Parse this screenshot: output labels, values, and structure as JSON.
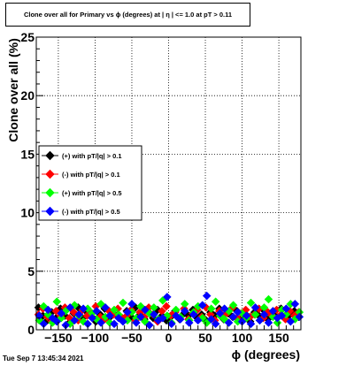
{
  "header": {
    "title": "Clone  over all for Primary vs ϕ (degrees) at |  η | <= 1.0 at pT > 0.11"
  },
  "footer": {
    "timestamp": "Tue Sep  7 13:45:34 2021"
  },
  "chart_data": {
    "type": "scatter",
    "title": "Clone  over all for Primary vs ϕ (degrees) at |  η | <= 1.0 at pT > 0.11",
    "xlabel": "ϕ (degrees)",
    "ylabel": "Clone  over all (%)",
    "xlim": [
      -180,
      180
    ],
    "ylim": [
      0,
      25
    ],
    "x_ticks": [
      -150,
      -100,
      -50,
      0,
      50,
      100,
      150
    ],
    "x_tick_labels": [
      "−150",
      "−100",
      "−50",
      "0",
      "50",
      "100",
      "150"
    ],
    "y_ticks": [
      0,
      5,
      10,
      15,
      20,
      25
    ],
    "y_tick_labels": [
      "0",
      "5",
      "10",
      "15",
      "20",
      "25"
    ],
    "grid": true,
    "marker": "diamond",
    "legend_position": "left-middle",
    "series": [
      {
        "name": "(+) with pT/|q| > 0.1",
        "color": "#000000",
        "x": [
          -177,
          -171,
          -165,
          -159,
          -153,
          -147,
          -141,
          -135,
          -129,
          -123,
          -117,
          -111,
          -105,
          -99,
          -93,
          -87,
          -81,
          -75,
          -69,
          -63,
          -57,
          -51,
          -45,
          -39,
          -33,
          -27,
          -21,
          -15,
          -9,
          -3,
          3,
          9,
          15,
          21,
          27,
          33,
          39,
          45,
          51,
          57,
          63,
          69,
          75,
          81,
          87,
          93,
          99,
          105,
          111,
          117,
          123,
          129,
          135,
          141,
          147,
          153,
          159,
          165,
          171,
          177
        ],
        "values": [
          1.9,
          1.2,
          0.8,
          1.5,
          1.0,
          1.8,
          1.2,
          0.6,
          1.4,
          1.9,
          1.0,
          1.5,
          1.1,
          0.7,
          1.3,
          1.8,
          1.0,
          1.4,
          1.2,
          0.8,
          1.6,
          1.1,
          1.9,
          1.3,
          0.9,
          1.5,
          1.0,
          1.7,
          1.2,
          0.8,
          1.1,
          1.6,
          0.9,
          1.4,
          1.2,
          1.7,
          1.0,
          1.3,
          0.8,
          1.5,
          1.2,
          1.8,
          0.9,
          1.4,
          1.1,
          1.6,
          1.0,
          1.3,
          0.7,
          1.5,
          1.2,
          1.7,
          0.9,
          1.4,
          1.1,
          1.8,
          1.0,
          1.3,
          1.6,
          1.1
        ]
      },
      {
        "name": "(-) with pT/|q| > 0.1",
        "color": "#ff0000",
        "x": [
          -177,
          -171,
          -165,
          -159,
          -153,
          -147,
          -141,
          -135,
          -129,
          -123,
          -117,
          -111,
          -105,
          -99,
          -93,
          -87,
          -81,
          -75,
          -69,
          -63,
          -57,
          -51,
          -45,
          -39,
          -33,
          -27,
          -21,
          -15,
          -9,
          -3,
          3,
          9,
          15,
          21,
          27,
          33,
          39,
          45,
          51,
          57,
          63,
          69,
          75,
          81,
          87,
          93,
          99,
          105,
          111,
          117,
          123,
          129,
          135,
          141,
          147,
          153,
          159,
          165,
          171,
          177
        ],
        "values": [
          1.3,
          1.8,
          1.1,
          0.7,
          1.6,
          1.2,
          1.9,
          1.0,
          1.5,
          0.8,
          1.7,
          1.2,
          1.4,
          2.0,
          1.1,
          0.9,
          1.6,
          1.3,
          1.8,
          1.0,
          1.2,
          1.7,
          0.8,
          1.5,
          1.1,
          1.9,
          1.3,
          0.7,
          1.6,
          2.0,
          1.2,
          1.5,
          1.0,
          1.8,
          0.9,
          1.4,
          1.7,
          1.1,
          1.9,
          1.3,
          0.8,
          1.6,
          1.2,
          1.5,
          1.9,
          1.0,
          1.4,
          1.7,
          1.1,
          1.3,
          1.8,
          1.0,
          1.5,
          1.2,
          1.7,
          1.3,
          0.9,
          1.6,
          1.2,
          1.5
        ]
      },
      {
        "name": "(+) with pT/|q| > 0.5",
        "color": "#00ff00",
        "x": [
          -176,
          -170,
          -164,
          -158,
          -152,
          -146,
          -140,
          -134,
          -128,
          -122,
          -116,
          -110,
          -104,
          -98,
          -92,
          -86,
          -80,
          -74,
          -68,
          -62,
          -56,
          -50,
          -44,
          -38,
          -32,
          -26,
          -20,
          -14,
          -8,
          -2,
          4,
          10,
          16,
          22,
          28,
          34,
          40,
          46,
          52,
          58,
          64,
          70,
          76,
          82,
          88,
          94,
          100,
          106,
          112,
          118,
          124,
          130,
          136,
          142,
          148,
          154,
          160,
          166,
          172,
          178
        ],
        "values": [
          0.8,
          2.0,
          1.3,
          0.6,
          2.4,
          1.0,
          1.6,
          0.5,
          2.1,
          1.2,
          0.7,
          1.8,
          1.4,
          0.9,
          2.2,
          1.1,
          0.6,
          1.7,
          1.3,
          2.3,
          0.8,
          1.5,
          1.0,
          2.0,
          0.7,
          1.4,
          1.9,
          0.9,
          2.5,
          1.2,
          0.6,
          1.7,
          1.1,
          2.2,
          0.8,
          1.5,
          2.0,
          1.0,
          0.6,
          1.8,
          2.4,
          1.2,
          0.9,
          1.6,
          2.1,
          0.7,
          1.4,
          1.0,
          2.3,
          1.3,
          0.8,
          1.9,
          2.6,
          1.1,
          0.6,
          1.7,
          1.3,
          2.2,
          0.9,
          1.5
        ]
      },
      {
        "name": "(-) with pT/|q| > 0.5",
        "color": "#0000ff",
        "x": [
          -176,
          -170,
          -164,
          -158,
          -152,
          -146,
          -140,
          -134,
          -128,
          -122,
          -116,
          -110,
          -104,
          -98,
          -92,
          -86,
          -80,
          -74,
          -68,
          -62,
          -56,
          -50,
          -44,
          -38,
          -32,
          -26,
          -20,
          -14,
          -8,
          -2,
          4,
          10,
          16,
          22,
          28,
          34,
          40,
          46,
          52,
          58,
          64,
          70,
          76,
          82,
          88,
          94,
          100,
          106,
          112,
          118,
          124,
          130,
          136,
          142,
          148,
          154,
          160,
          166,
          172,
          178
        ],
        "values": [
          1.2,
          0.5,
          1.7,
          1.0,
          0.7,
          1.4,
          0.4,
          1.9,
          0.8,
          1.3,
          1.8,
          0.5,
          1.0,
          1.6,
          0.6,
          1.9,
          1.2,
          0.5,
          1.0,
          0.7,
          1.5,
          2.2,
          0.6,
          1.1,
          1.7,
          0.4,
          1.3,
          0.8,
          1.0,
          2.8,
          0.5,
          1.2,
          0.9,
          1.6,
          0.6,
          1.3,
          0.8,
          2.1,
          2.9,
          0.9,
          0.5,
          1.4,
          1.8,
          0.6,
          1.1,
          1.5,
          0.7,
          1.2,
          0.5,
          1.9,
          0.8,
          1.3,
          0.6,
          1.6,
          1.0,
          1.2,
          1.8,
          0.7,
          2.2,
          1.1
        ]
      }
    ]
  }
}
